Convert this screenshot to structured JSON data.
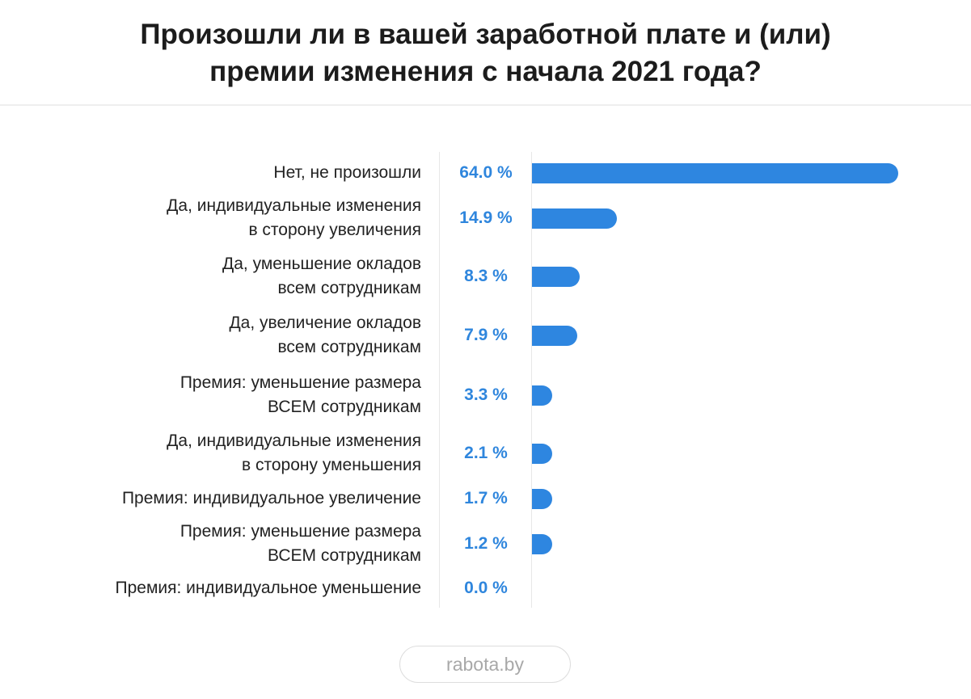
{
  "title_lines": [
    "Произошли ли в вашей заработной плате и (или)",
    "премии изменения с начала 2021 года?"
  ],
  "chart_data": {
    "type": "bar",
    "orientation": "horizontal",
    "title": "Произошли ли в вашей заработной плате и (или) премии изменения с начала 2021 года?",
    "categories": [
      [
        "Нет, не произошли"
      ],
      [
        "Да, индивидуальные изменения",
        "в сторону увеличения"
      ],
      [
        "Да, уменьшение окладов",
        "всем сотрудникам"
      ],
      [
        "Да, увеличение окладов",
        "всем сотрудникам"
      ],
      [
        "Премия: уменьшение размера",
        "ВСЕМ сотрудникам"
      ],
      [
        "Да, индивидуальные изменения",
        "в сторону уменьшения"
      ],
      [
        "Премия: индивидуальное увеличение"
      ],
      [
        "Премия: уменьшение размера",
        "ВСЕМ сотрудникам"
      ],
      [
        "Премия: индивидуальное уменьшение"
      ]
    ],
    "values": [
      64.0,
      14.9,
      8.3,
      7.9,
      3.3,
      2.1,
      1.7,
      1.2,
      0.0
    ],
    "value_labels": [
      "64.0 %",
      "14.9 %",
      "8.3 %",
      "7.9 %",
      "3.3 %",
      "2.1 %",
      "1.7 %",
      "1.2 %",
      "0.0 %"
    ],
    "unit": "%",
    "xlim": [
      0,
      64
    ],
    "grid": false,
    "colors": {
      "bar": "#2e86e0",
      "value_text": "#2f86dd",
      "axis_line": "#e7e7e7"
    }
  },
  "footer": {
    "brand": "rabota.by"
  }
}
